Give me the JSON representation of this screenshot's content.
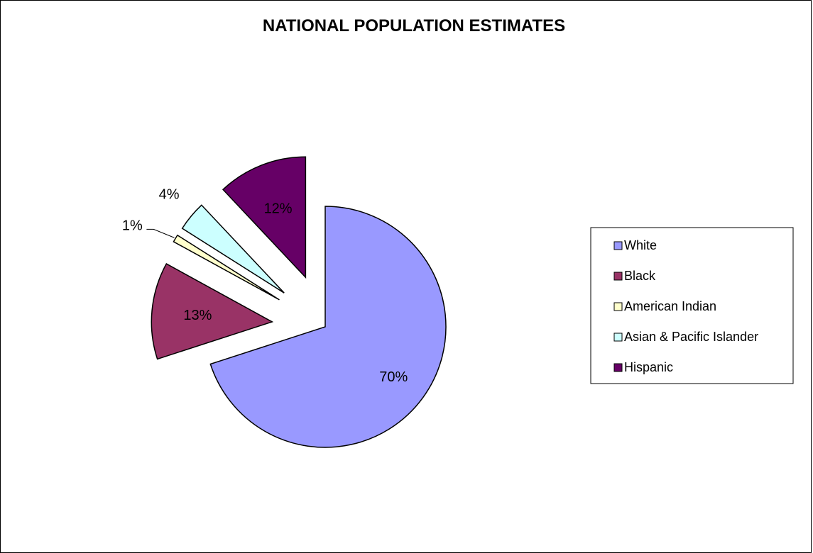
{
  "chart_data": {
    "type": "pie",
    "title": "NATIONAL POPULATION ESTIMATES",
    "categories": [
      "White",
      "Black",
      "American Indian",
      "Asian & Pacific Islander",
      "Hispanic"
    ],
    "values": [
      70,
      13,
      1,
      4,
      12
    ],
    "data_labels": [
      "70%",
      "13%",
      "1%",
      "4%",
      "12%"
    ],
    "colors": [
      "#9999FF",
      "#993366",
      "#FFFFCC",
      "#CCFFFF",
      "#660066"
    ],
    "exploded": true,
    "legend": "right"
  }
}
